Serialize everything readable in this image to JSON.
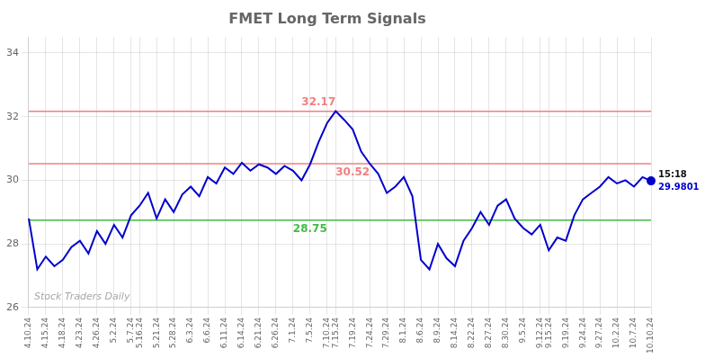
{
  "chart_data": {
    "type": "line",
    "title": "FMET Long Term Signals",
    "categories": [
      "4.10.24",
      null,
      "4.15.24",
      null,
      "4.18.24",
      null,
      "4.23.24",
      null,
      "4.26.24",
      null,
      "5.2.24",
      null,
      "5.7.24",
      "5.16.24",
      null,
      "5.21.24",
      null,
      "5.28.24",
      null,
      "6.3.24",
      null,
      "6.6.24",
      null,
      "6.11.24",
      null,
      "6.14.24",
      null,
      "6.21.24",
      null,
      "6.26.24",
      null,
      "7.1.24",
      null,
      "7.5.24",
      null,
      "7.10.24",
      "7.15.24",
      null,
      "7.19.24",
      null,
      "7.24.24",
      null,
      "7.29.24",
      null,
      "8.1.24",
      null,
      "8.6.24",
      null,
      "8.9.24",
      null,
      "8.14.24",
      null,
      "8.22.24",
      null,
      "8.27.24",
      null,
      "8.30.24",
      null,
      "9.5.24",
      null,
      "9.12.24",
      "9.15.24",
      null,
      "9.19.24",
      null,
      "9.24.24",
      null,
      "9.27.24",
      null,
      "10.2.24",
      null,
      "10.7.24",
      null,
      "10.10.24"
    ],
    "values": [
      28.8,
      27.2,
      27.6,
      27.3,
      27.5,
      27.9,
      28.1,
      27.7,
      28.4,
      28.0,
      28.6,
      28.2,
      28.9,
      29.2,
      29.6,
      28.8,
      29.4,
      29.0,
      29.55,
      29.8,
      29.5,
      30.1,
      29.9,
      30.4,
      30.2,
      30.55,
      30.3,
      30.5,
      30.4,
      30.2,
      30.45,
      30.3,
      30.0,
      30.5,
      31.2,
      31.8,
      32.17,
      31.9,
      31.6,
      30.9,
      30.52,
      30.2,
      29.6,
      29.8,
      30.1,
      29.5,
      27.5,
      27.2,
      28.0,
      27.55,
      27.3,
      28.1,
      28.5,
      29.0,
      28.6,
      29.2,
      29.4,
      28.8,
      28.5,
      28.3,
      28.6,
      27.8,
      28.2,
      28.1,
      28.9,
      29.4,
      29.6,
      29.8,
      30.1,
      29.9,
      30.0,
      29.8,
      30.1,
      29.98
    ],
    "color": "#0000cc",
    "hlines": [
      {
        "value": 32.17,
        "color": "#f08080",
        "label": "32.17"
      },
      {
        "value": 30.52,
        "color": "#f08080",
        "label": "30.52"
      },
      {
        "value": 28.75,
        "color": "#44bb44",
        "label": "28.75"
      }
    ],
    "annotations": [
      "15:18",
      "29.9801"
    ],
    "watermark": "Stock Traders Daily",
    "ylim": [
      26,
      34.5
    ],
    "yticks": [
      26,
      28,
      30,
      32,
      34
    ],
    "grid": true
  }
}
